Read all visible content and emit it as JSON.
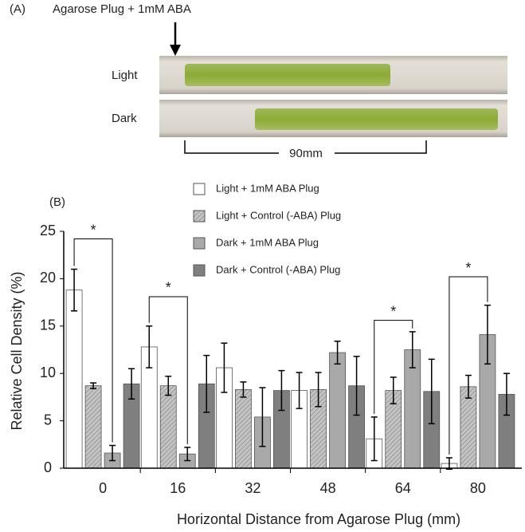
{
  "photo": {
    "label": "(A)",
    "caption": "Agarose Plug + 1mM ABA",
    "rows": [
      "Light",
      "Dark"
    ],
    "scale": "90mm"
  },
  "chart_data": {
    "type": "bar",
    "panel_label": "(B)",
    "x_label": "Horizontal Distance from Agarose Plug (mm)",
    "y_label": "Relative Cell Density (%)",
    "categories": [
      "0",
      "16",
      "32",
      "48",
      "64",
      "80"
    ],
    "series": [
      {
        "name": "Light + 1mM ABA Plug",
        "color": "#ffffff",
        "values": [
          18.8,
          12.8,
          10.6,
          8.2,
          3.1,
          0.5
        ],
        "errors": [
          2.2,
          2.2,
          2.6,
          1.9,
          2.3,
          0.6
        ]
      },
      {
        "name": "Light + Control (-ABA) Plug",
        "color": "#c4c4c4",
        "hatch": true,
        "values": [
          8.7,
          8.7,
          8.3,
          8.3,
          8.2,
          8.6
        ],
        "errors": [
          0.3,
          1.0,
          0.8,
          1.8,
          1.4,
          1.2
        ]
      },
      {
        "name": "Dark + 1mM ABA Plug",
        "color": "#a9a9a9",
        "values": [
          1.6,
          1.5,
          5.4,
          12.2,
          12.5,
          14.1
        ],
        "errors": [
          0.8,
          0.7,
          3.1,
          1.2,
          1.9,
          3.1
        ]
      },
      {
        "name": "Dark + Control (-ABA) Plug",
        "color": "#7f7f7f",
        "values": [
          8.9,
          8.9,
          8.2,
          8.7,
          8.1,
          7.8
        ],
        "errors": [
          1.6,
          3.0,
          2.1,
          3.1,
          3.4,
          2.2
        ]
      }
    ],
    "ylim": [
      0,
      25
    ],
    "yticks": [
      0,
      5,
      10,
      15,
      20,
      25
    ],
    "legend": "top",
    "annotations": [
      {
        "text": "*",
        "category": 0,
        "from": 0,
        "to": 2,
        "y": 24.2
      },
      {
        "text": "*",
        "category": 1,
        "from": 0,
        "to": 2,
        "y": 18.1
      },
      {
        "text": "*",
        "category": 4,
        "from": 0,
        "to": 2,
        "y": 15.6
      },
      {
        "text": "*",
        "category": 5,
        "from": 0,
        "to": 2,
        "y": 20.2
      }
    ]
  }
}
